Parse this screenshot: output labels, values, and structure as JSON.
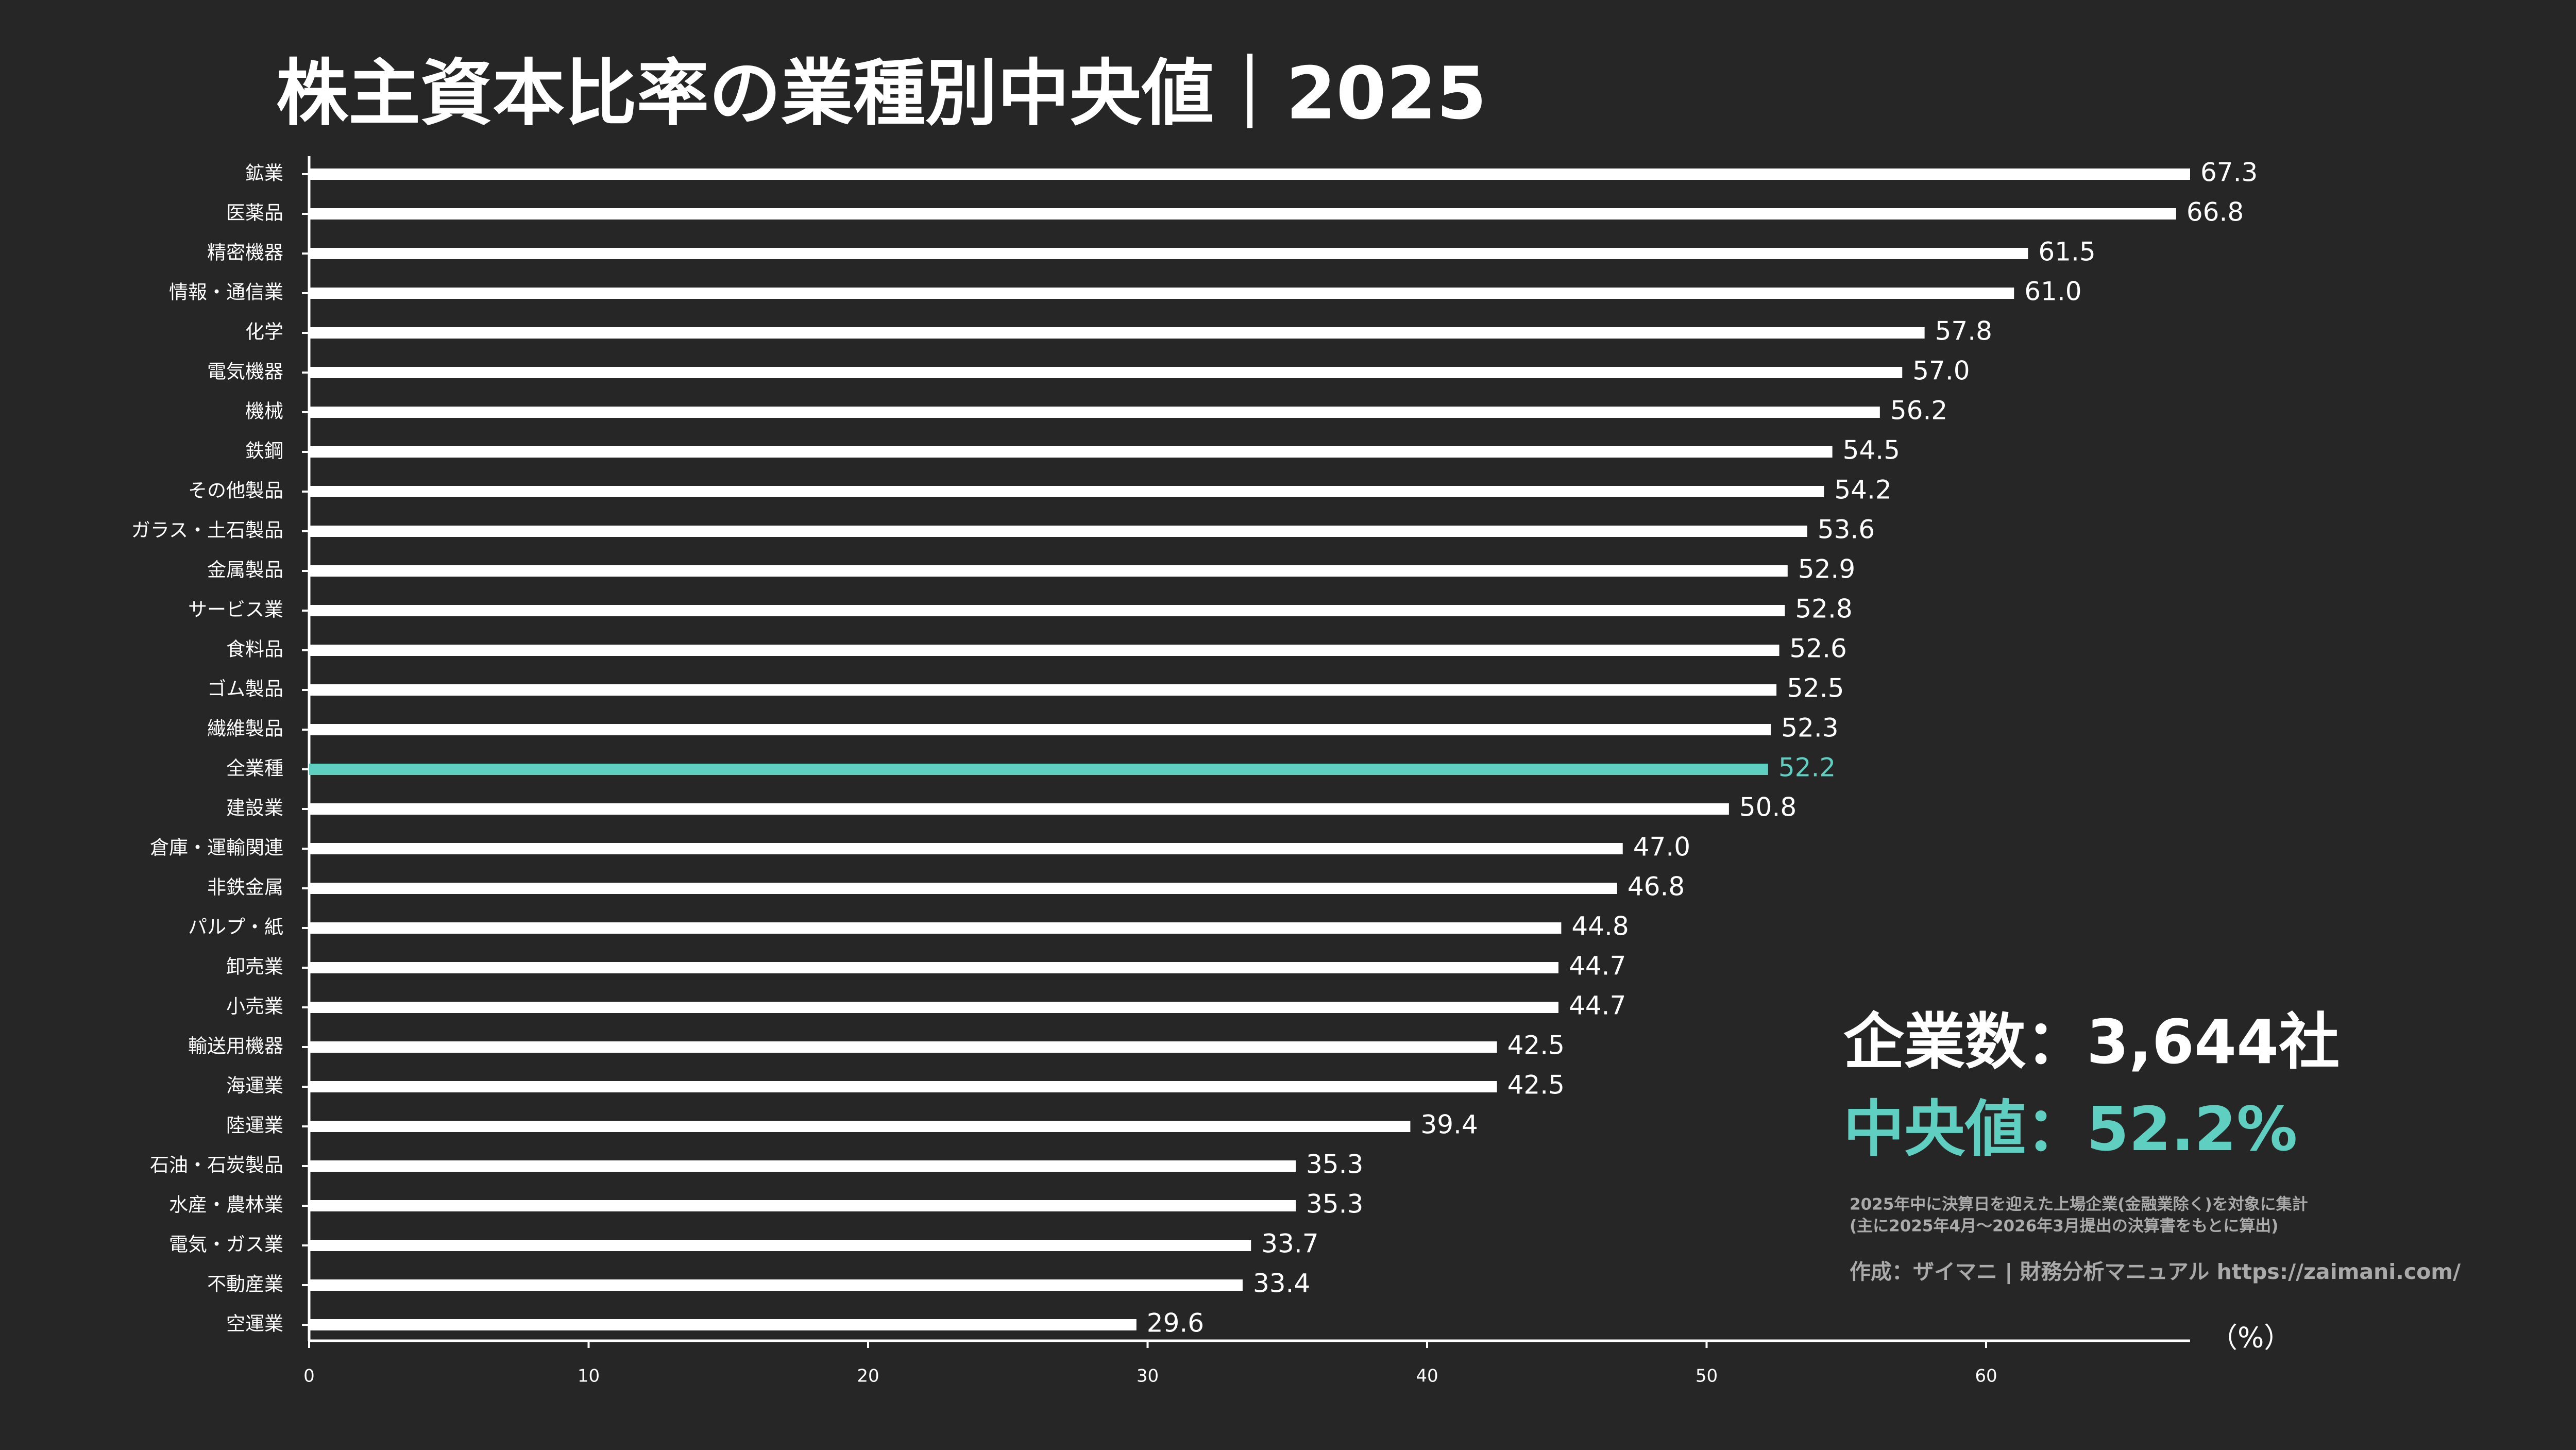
{
  "chart_data": {
    "type": "barh",
    "title": "株主資本比率の業種別中央値｜2025",
    "xlabel": "（%）",
    "categories": [
      "鉱業",
      "医薬品",
      "精密機器",
      "情報・通信業",
      "化学",
      "電気機器",
      "機械",
      "鉄鋼",
      "その他製品",
      "ガラス・土石製品",
      "金属製品",
      "サービス業",
      "食料品",
      "ゴム製品",
      "繊維製品",
      "全業種",
      "建設業",
      "倉庫・運輸関連",
      "非鉄金属",
      "パルプ・紙",
      "卸売業",
      "小売業",
      "輸送用機器",
      "海運業",
      "陸運業",
      "石油・石炭製品",
      "水産・農林業",
      "電気・ガス業",
      "不動産業",
      "空運業"
    ],
    "values": [
      67.3,
      66.8,
      61.5,
      61.0,
      57.8,
      57.0,
      56.2,
      54.5,
      54.2,
      53.6,
      52.9,
      52.8,
      52.6,
      52.5,
      52.3,
      52.2,
      50.8,
      47.0,
      46.8,
      44.8,
      44.7,
      44.7,
      42.5,
      42.5,
      39.4,
      35.3,
      35.3,
      33.7,
      33.4,
      29.6
    ],
    "value_labels": [
      "67.3",
      "66.8",
      "61.5",
      "61.0",
      "57.8",
      "57.0",
      "56.2",
      "54.5",
      "54.2",
      "53.6",
      "52.9",
      "52.8",
      "52.6",
      "52.5",
      "52.3",
      "52.2",
      "50.8",
      "47.0",
      "46.8",
      "44.8",
      "44.7",
      "44.7",
      "42.5",
      "42.5",
      "39.4",
      "35.3",
      "35.3",
      "33.7",
      "33.4",
      "29.6"
    ],
    "colors": [
      "#ffffff",
      "#ffffff",
      "#ffffff",
      "#ffffff",
      "#ffffff",
      "#ffffff",
      "#ffffff",
      "#ffffff",
      "#ffffff",
      "#ffffff",
      "#ffffff",
      "#ffffff",
      "#ffffff",
      "#ffffff",
      "#ffffff",
      "#5ecfc0",
      "#ffffff",
      "#ffffff",
      "#ffffff",
      "#ffffff",
      "#ffffff",
      "#ffffff",
      "#ffffff",
      "#ffffff",
      "#ffffff",
      "#ffffff",
      "#ffffff",
      "#ffffff",
      "#ffffff",
      "#ffffff"
    ],
    "xlim": [
      0,
      67.3
    ],
    "xticks": [
      0,
      10,
      20,
      30,
      40,
      50,
      60
    ],
    "annotations": {
      "company_count": "企業数：3,644社",
      "median": "中央値：52.2%",
      "note": [
        "2025年中に決算日を迎えた上場企業(金融業除く)を対象に集計",
        "(主に2025年4月〜2026年3月提出の決算書をもとに算出)"
      ],
      "credit": "作成：ザイマニ | 財務分析マニュアル https://zaimani.com/"
    }
  }
}
